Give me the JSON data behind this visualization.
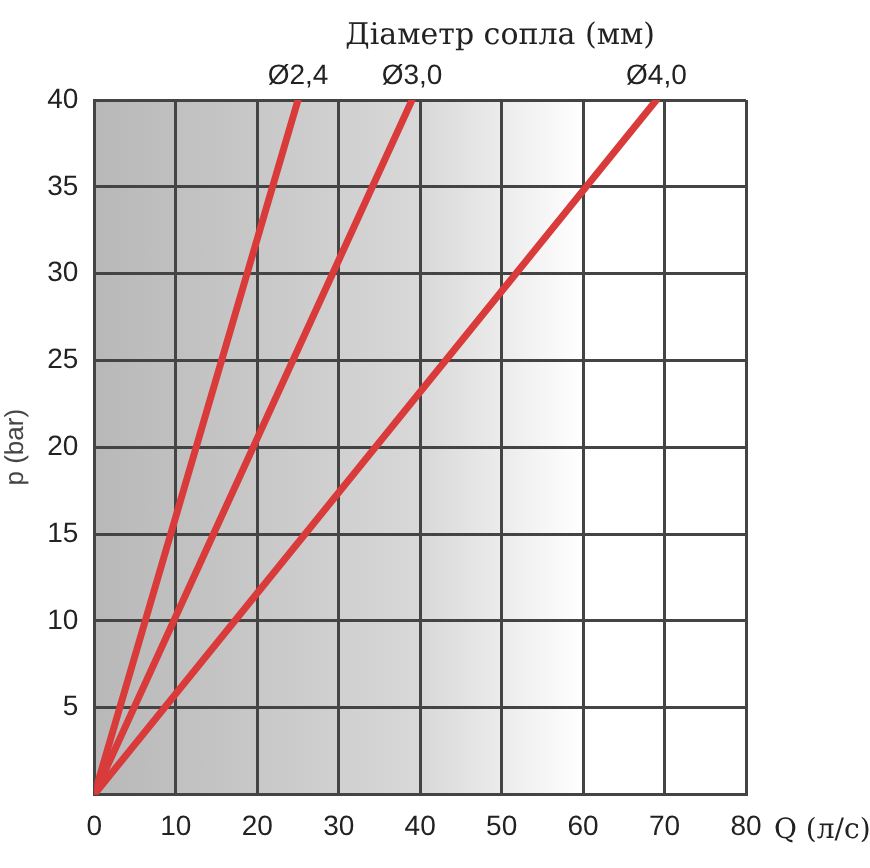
{
  "chart_data": {
    "type": "line",
    "title": "Діаметр сопла (мм)",
    "xlabel": "Q (л/с)",
    "ylabel": "p (bar)",
    "xlim": [
      0,
      80
    ],
    "xticks": [
      0,
      10,
      20,
      30,
      40,
      50,
      60,
      70,
      80
    ],
    "ylim": [
      0,
      40
    ],
    "yticks": [
      {
        "value": 0,
        "label": null
      },
      5,
      10,
      15,
      20,
      25,
      30,
      35,
      40
    ],
    "grid": true,
    "legend": false,
    "marker": "none",
    "line_style": "solid",
    "series": [
      {
        "name": "Ø2,4",
        "color": "#d93a3a",
        "x": [
          0,
          25
        ],
        "values": [
          0,
          40
        ]
      },
      {
        "name": "Ø3,0",
        "color": "#d93a3a",
        "x": [
          0,
          39
        ],
        "values": [
          0,
          40
        ]
      },
      {
        "name": "Ø4,0",
        "color": "#d93a3a",
        "x": [
          0,
          69
        ],
        "values": [
          0,
          40
        ]
      }
    ]
  }
}
